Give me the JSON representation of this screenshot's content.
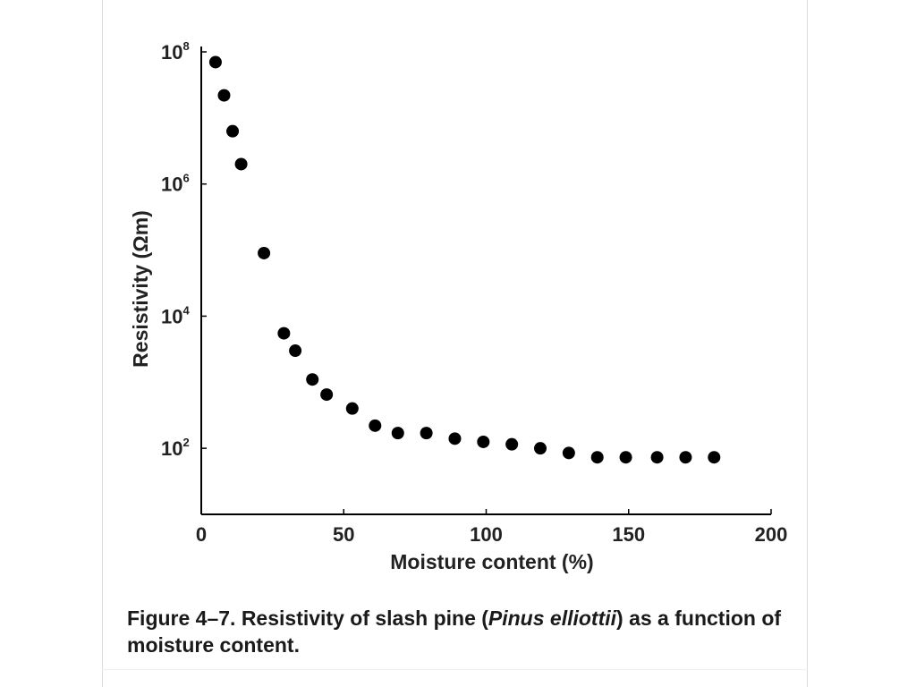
{
  "caption": {
    "text_before": "Figure 4–7. Resistivity of slash pine (",
    "species": "Pinus elliottii",
    "text_after": ") as a function of moisture content."
  },
  "chart_data": {
    "type": "scatter",
    "title": "",
    "xlabel": "Moisture content (%)",
    "ylabel": "Resistivity (Ωm)",
    "xlim": [
      0,
      200
    ],
    "ylim_log10": [
      1,
      8
    ],
    "y_scale": "log",
    "grid": false,
    "legend": "none",
    "x_ticks": [
      {
        "value": 0,
        "label": "0"
      },
      {
        "value": 50,
        "label": "50"
      },
      {
        "value": 100,
        "label": "100"
      },
      {
        "value": 150,
        "label": "150"
      },
      {
        "value": 200,
        "label": "200"
      }
    ],
    "y_ticks": [
      {
        "exp": 2,
        "base": "10",
        "sup": "2"
      },
      {
        "exp": 4,
        "base": "10",
        "sup": "4"
      },
      {
        "exp": 6,
        "base": "10",
        "sup": "6"
      },
      {
        "exp": 8,
        "base": "10",
        "sup": "8"
      }
    ],
    "series": [
      {
        "color": "#000000",
        "points": [
          {
            "x": 5,
            "y": 70000000
          },
          {
            "x": 8,
            "y": 22000000
          },
          {
            "x": 11,
            "y": 6300000
          },
          {
            "x": 14,
            "y": 2000000
          },
          {
            "x": 22,
            "y": 90000
          },
          {
            "x": 29,
            "y": 5500
          },
          {
            "x": 33,
            "y": 3000
          },
          {
            "x": 39,
            "y": 1100
          },
          {
            "x": 44,
            "y": 650
          },
          {
            "x": 53,
            "y": 400
          },
          {
            "x": 61,
            "y": 220
          },
          {
            "x": 69,
            "y": 170
          },
          {
            "x": 79,
            "y": 170
          },
          {
            "x": 89,
            "y": 140
          },
          {
            "x": 99,
            "y": 125
          },
          {
            "x": 109,
            "y": 115
          },
          {
            "x": 119,
            "y": 100
          },
          {
            "x": 129,
            "y": 85
          },
          {
            "x": 139,
            "y": 73
          },
          {
            "x": 149,
            "y": 73
          },
          {
            "x": 160,
            "y": 73
          },
          {
            "x": 170,
            "y": 73
          },
          {
            "x": 180,
            "y": 73
          }
        ]
      }
    ]
  }
}
